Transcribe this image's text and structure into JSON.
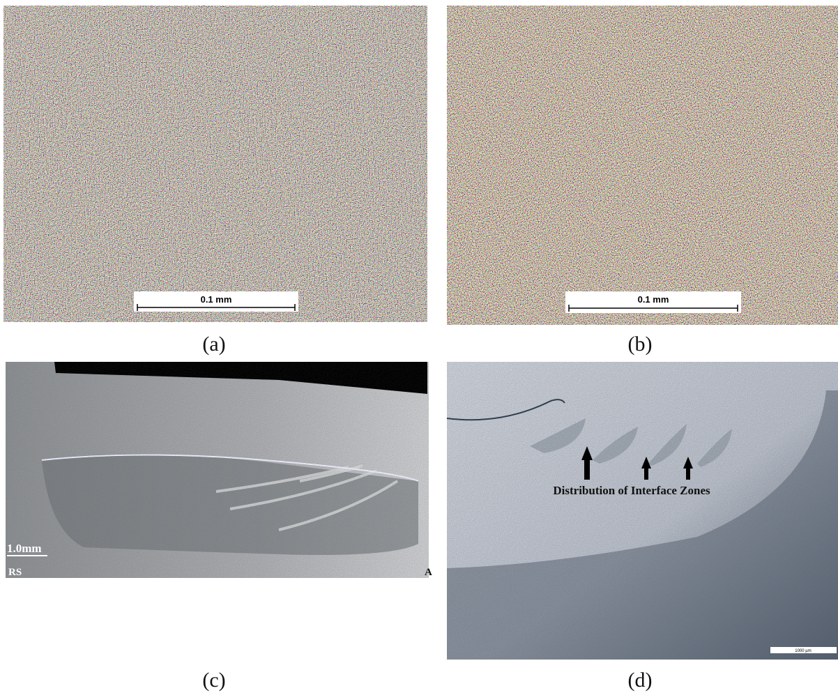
{
  "panels": [
    {
      "label": "(a)",
      "scale_bar": "0.1 mm"
    },
    {
      "label": "(b)",
      "scale_bar": "0.1 mm"
    },
    {
      "label": "(c)",
      "scale_bar": "1.0mm",
      "side_labels": [
        "RS",
        "A"
      ]
    },
    {
      "label": "(d)",
      "annotation": "Distribution of Interface Zones",
      "scale_bar": "1000 µm"
    }
  ]
}
